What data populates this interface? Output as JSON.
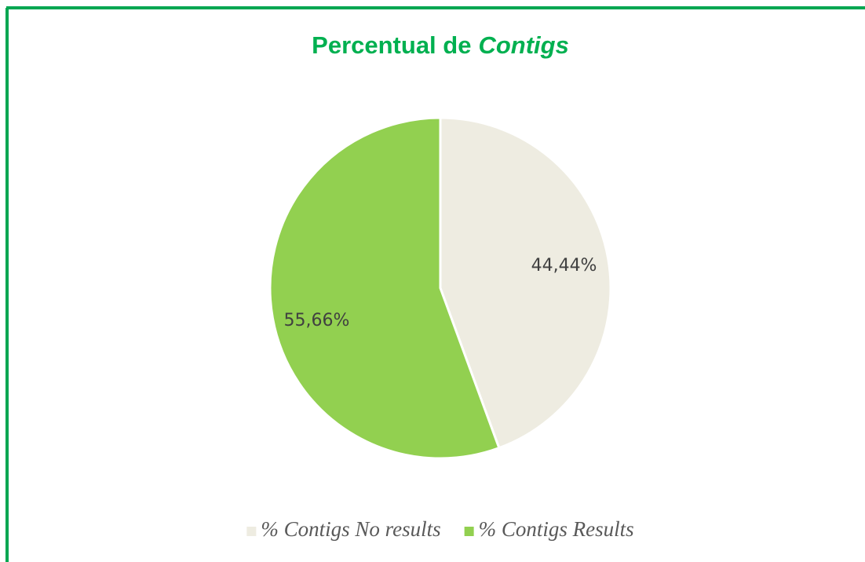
{
  "chart_data": {
    "type": "pie",
    "title": [
      "Percentual de",
      "Contigs"
    ],
    "categories": [
      "% Contigs No results",
      "% Contigs Results"
    ],
    "values": [
      44.44,
      55.66
    ],
    "value_labels": [
      "44,44%",
      "55,66%"
    ],
    "colors": [
      "#eeece1",
      "#92d050"
    ],
    "legend": "bottom"
  }
}
